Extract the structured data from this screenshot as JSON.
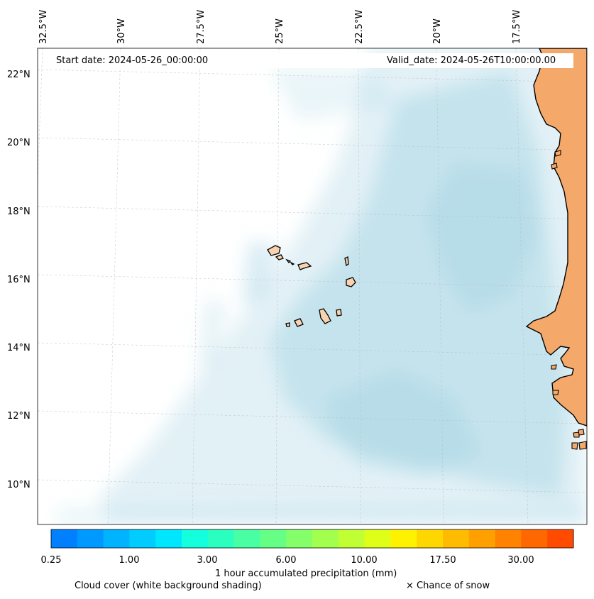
{
  "header": {
    "start_date": "Start date: 2024-05-26_00:00:00",
    "valid_date": "Valid_date: 2024-05-26T10:00:00.00"
  },
  "map": {
    "longitude_labels": [
      "32.5°W",
      "30°W",
      "27.5°W",
      "25°W",
      "22.5°W",
      "20°W",
      "17.5°W"
    ],
    "latitude_labels": [
      "22°N",
      "20°N",
      "18°N",
      "16°N",
      "14°N",
      "12°N",
      "10°N"
    ],
    "colors": {
      "land": "#f4a96b",
      "island_land": "#f9d3b0",
      "cloud": "#add8e6",
      "coastline": "#000000"
    }
  },
  "colorbar": {
    "tick_labels": [
      "0.25",
      "1.00",
      "3.00",
      "6.00",
      "10.00",
      "17.50",
      "30.00"
    ],
    "colors": [
      "#0080ff",
      "#0099ff",
      "#00b3ff",
      "#00ccff",
      "#00e6ff",
      "#14ffdd",
      "#2bffc0",
      "#48ffa3",
      "#66ff86",
      "#84ff6a",
      "#a2ff4e",
      "#c0ff33",
      "#dfff18",
      "#fff200",
      "#ffd700",
      "#ffbb00",
      "#ff9f00",
      "#ff8300",
      "#ff6700",
      "#ff4b00"
    ],
    "label": "1 hour accumulated precipitation (mm)"
  },
  "legend": {
    "cloud_cover": "Cloud cover (white background shading)",
    "snow": "× Chance of snow"
  }
}
